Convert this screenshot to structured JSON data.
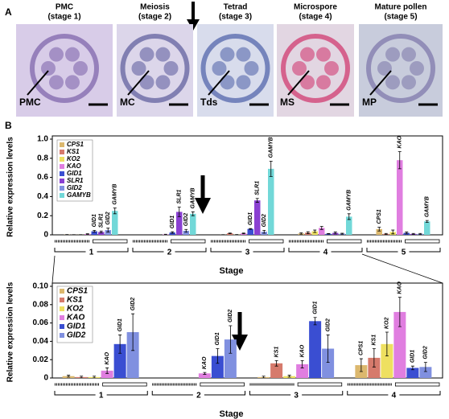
{
  "panel_a": {
    "label": "A",
    "images": [
      {
        "title": "PMC",
        "stage": "(stage 1)",
        "label": "PMC"
      },
      {
        "title": "Meiosis",
        "stage": "(stage 2)",
        "label": "MC"
      },
      {
        "title": "Tetrad",
        "stage": "(stage 3)",
        "label": "Tds"
      },
      {
        "title": "Microspore",
        "stage": "(stage 4)",
        "label": "MS"
      },
      {
        "title": "Mature pollen",
        "stage": "(stage 5)",
        "label": "MP"
      }
    ]
  },
  "panel_b_label": "B",
  "chart_data": [
    {
      "type": "bar",
      "ylabel": "Relative expression levels",
      "xlabel": "Stage",
      "categories": [
        "1",
        "2",
        "3",
        "4",
        "5"
      ],
      "ylim": [
        0,
        1.0
      ],
      "yticks": [
        0,
        0.2,
        0.4,
        0.6,
        0.8,
        {
          "value": 1.0,
          "label": "1.0"
        }
      ],
      "series": [
        {
          "name": "CPS1",
          "color": "#dcb86e",
          "values": [
            0.002,
            0,
            0.001,
            0.014,
            0.06
          ],
          "errors": [
            0.001,
            0,
            0.001,
            0.007,
            0.02
          ]
        },
        {
          "name": "KS1",
          "color": "#d67a6c",
          "values": [
            0.001,
            0,
            0.016,
            0.022,
            0.01
          ],
          "errors": [
            0.001,
            0,
            0.003,
            0.01,
            0.005
          ]
        },
        {
          "name": "KO2",
          "color": "#eee060",
          "values": [
            0.001,
            0,
            0.002,
            0.037,
            0.03
          ],
          "errors": [
            0.001,
            0,
            0.001,
            0.013,
            0.02
          ]
        },
        {
          "name": "KAO",
          "color": "#e07ee0",
          "values": [
            0.008,
            0.005,
            0.015,
            0.072,
            0.78
          ],
          "errors": [
            0.003,
            0.001,
            0.004,
            0.016,
            0.09
          ]
        },
        {
          "name": "GID1",
          "color": "#3a4ed2",
          "values": [
            0.037,
            0.024,
            0.062,
            0.011,
            0.02
          ],
          "errors": [
            0.01,
            0.008,
            0.004,
            0.002,
            0.01
          ]
        },
        {
          "name": "SLR1",
          "color": "#8a40d2",
          "values": [
            0.03,
            0.24,
            0.36,
            0.02,
            0.01
          ],
          "errors": [
            0.01,
            0.05,
            0.02,
            0.01,
            0.005
          ]
        },
        {
          "name": "GID2",
          "color": "#8090e0",
          "values": [
            0.05,
            0.042,
            0.032,
            0.012,
            0.01
          ],
          "errors": [
            0.02,
            0.015,
            0.015,
            0.005,
            0.005
          ]
        },
        {
          "name": "GAMYB",
          "color": "#72d8d8",
          "values": [
            0.25,
            0.22,
            0.69,
            0.19,
            0.14
          ],
          "errors": [
            0.03,
            0.02,
            0.08,
            0.03,
            0.01
          ]
        }
      ],
      "bar_labels": [
        [
          0,
          4
        ],
        [
          0,
          5
        ],
        [
          0,
          6
        ],
        [
          0,
          7
        ],
        [
          1,
          4
        ],
        [
          1,
          5
        ],
        [
          1,
          6
        ],
        [
          1,
          7
        ],
        [
          2,
          4
        ],
        [
          2,
          5
        ],
        [
          2,
          6
        ],
        [
          2,
          7
        ],
        [
          3,
          7
        ],
        [
          4,
          0
        ],
        [
          4,
          3
        ],
        [
          4,
          7
        ]
      ]
    },
    {
      "type": "bar",
      "ylabel": "Relative expression levels",
      "xlabel": "Stage",
      "categories": [
        "1",
        "2",
        "3",
        "4"
      ],
      "ylim": [
        0,
        0.1
      ],
      "yticks": [
        0,
        0.02,
        0.04,
        0.06,
        0.08,
        {
          "value": 0.1,
          "label": "0.10"
        }
      ],
      "series": [
        {
          "name": "CPS1",
          "color": "#dcb86e",
          "values": [
            0.002,
            0,
            0.001,
            0.014
          ],
          "errors": [
            0.001,
            0,
            0.001,
            0.007
          ]
        },
        {
          "name": "KS1",
          "color": "#d67a6c",
          "values": [
            0.001,
            0,
            0.016,
            0.022
          ],
          "errors": [
            0.001,
            0,
            0.003,
            0.01
          ]
        },
        {
          "name": "KO2",
          "color": "#eee060",
          "values": [
            0.001,
            0,
            0.002,
            0.037
          ],
          "errors": [
            0.001,
            0,
            0.001,
            0.013
          ]
        },
        {
          "name": "KAO",
          "color": "#e07ee0",
          "values": [
            0.008,
            0.005,
            0.015,
            0.072
          ],
          "errors": [
            0.003,
            0.001,
            0.004,
            0.016
          ]
        },
        {
          "name": "GID1",
          "color": "#3a4ed2",
          "values": [
            0.037,
            0.024,
            0.062,
            0.011
          ],
          "errors": [
            0.01,
            0.008,
            0.004,
            0.002
          ]
        },
        {
          "name": "GID2",
          "color": "#8090e0",
          "values": [
            0.05,
            0.042,
            0.032,
            0.012
          ],
          "errors": [
            0.02,
            0.015,
            0.015,
            0.005
          ]
        }
      ],
      "bar_labels": [
        [
          0,
          3
        ],
        [
          0,
          4
        ],
        [
          0,
          5
        ],
        [
          1,
          3
        ],
        [
          1,
          4
        ],
        [
          1,
          5
        ],
        [
          2,
          1
        ],
        [
          2,
          3
        ],
        [
          2,
          4
        ],
        [
          2,
          5
        ],
        [
          3,
          0
        ],
        [
          3,
          1
        ],
        [
          3,
          2
        ],
        [
          3,
          3
        ],
        [
          3,
          4
        ],
        [
          3,
          5
        ]
      ]
    }
  ]
}
